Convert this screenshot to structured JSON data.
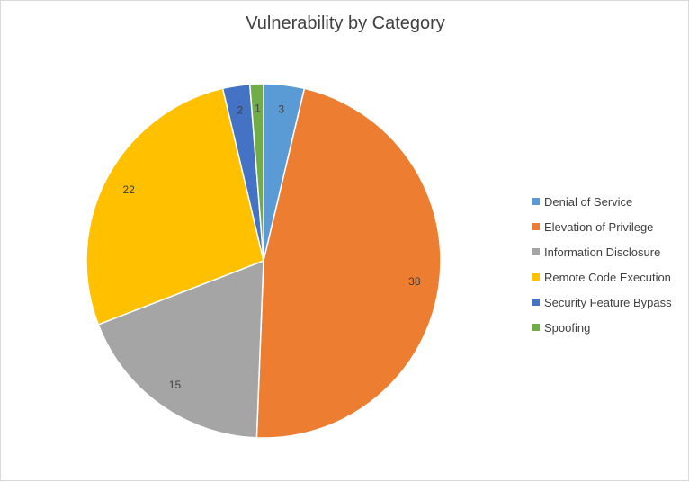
{
  "chart_data": {
    "type": "pie",
    "title": "Vulnerability  by Category",
    "categories": [
      "Denial of Service",
      "Elevation of Privilege",
      "Information Disclosure",
      "Remote Code Execution",
      "Security Feature Bypass",
      "Spoofing"
    ],
    "values": [
      3,
      38,
      15,
      22,
      2,
      1
    ],
    "colors": [
      "#5B9BD5",
      "#ED7D31",
      "#A5A5A5",
      "#FFC000",
      "#4472C4",
      "#70AD47"
    ],
    "legend_position": "right"
  }
}
